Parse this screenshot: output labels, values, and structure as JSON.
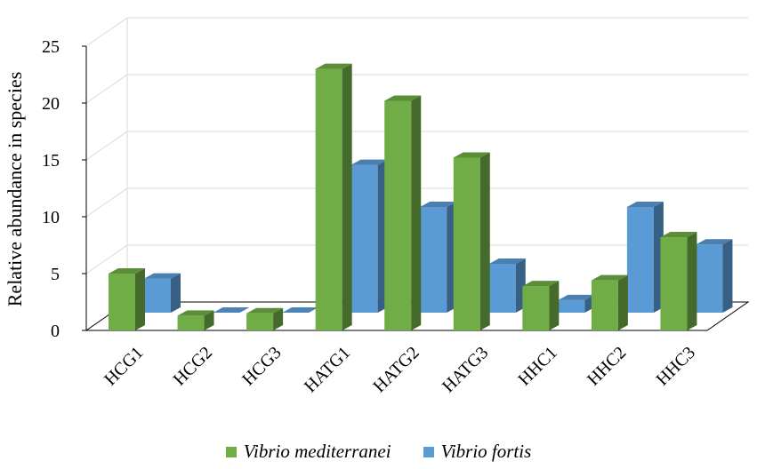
{
  "chart_data": {
    "type": "bar",
    "title": "",
    "xlabel": "",
    "ylabel": "Relative abundance in species",
    "ylim": [
      0,
      25
    ],
    "yticks": [
      "0",
      "5",
      "10",
      "15",
      "20",
      "25"
    ],
    "categories": [
      "HCG1",
      "HCG2",
      "HCG3",
      "HATG1",
      "HATG2",
      "HATG3",
      "HHC1",
      "HHC2",
      "HHC3"
    ],
    "series": [
      {
        "name": "Vibrio mediterranei",
        "color": "#70ad47",
        "values": [
          5.0,
          1.3,
          1.5,
          23.0,
          20.2,
          15.2,
          3.9,
          4.4,
          8.2
        ]
      },
      {
        "name": "Vibrio fortis",
        "color": "#5b9bd5",
        "values": [
          3.0,
          0.0,
          0.0,
          13.0,
          9.3,
          4.3,
          1.1,
          9.3,
          6.0
        ]
      }
    ],
    "grid": true,
    "legend_position": "bottom",
    "style": "3d-clustered-column"
  }
}
